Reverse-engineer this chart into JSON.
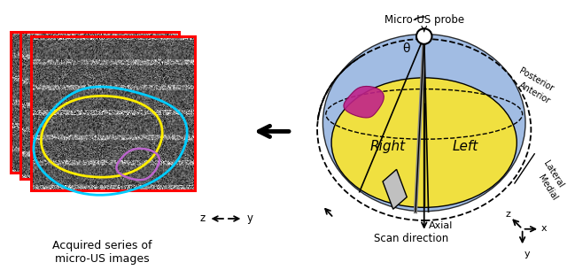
{
  "title": "",
  "bg_color": "#ffffff",
  "left_label": "Acquired series of\nmicro-US images",
  "right_label": "Micro-US probe",
  "scan_direction_label": "Scan direction",
  "axial_label": "Axial",
  "right_lobe": "Right",
  "left_lobe": "Left",
  "medial_label": "Medial",
  "lateral_label": "Lateral",
  "anterior_label": "Anterior",
  "posterior_label": "Posterior",
  "theta_label": "θ",
  "yellow_color": "#f0e040",
  "blue_color": "#8aacdc",
  "magenta_color": "#c0228a",
  "arrow_color": "#000000",
  "probe_gray": "#888888",
  "red_border": "#ff0000",
  "cyan_contour": "#00ccff",
  "yellow_contour": "#ffee00",
  "purple_contour": "#bb66cc"
}
